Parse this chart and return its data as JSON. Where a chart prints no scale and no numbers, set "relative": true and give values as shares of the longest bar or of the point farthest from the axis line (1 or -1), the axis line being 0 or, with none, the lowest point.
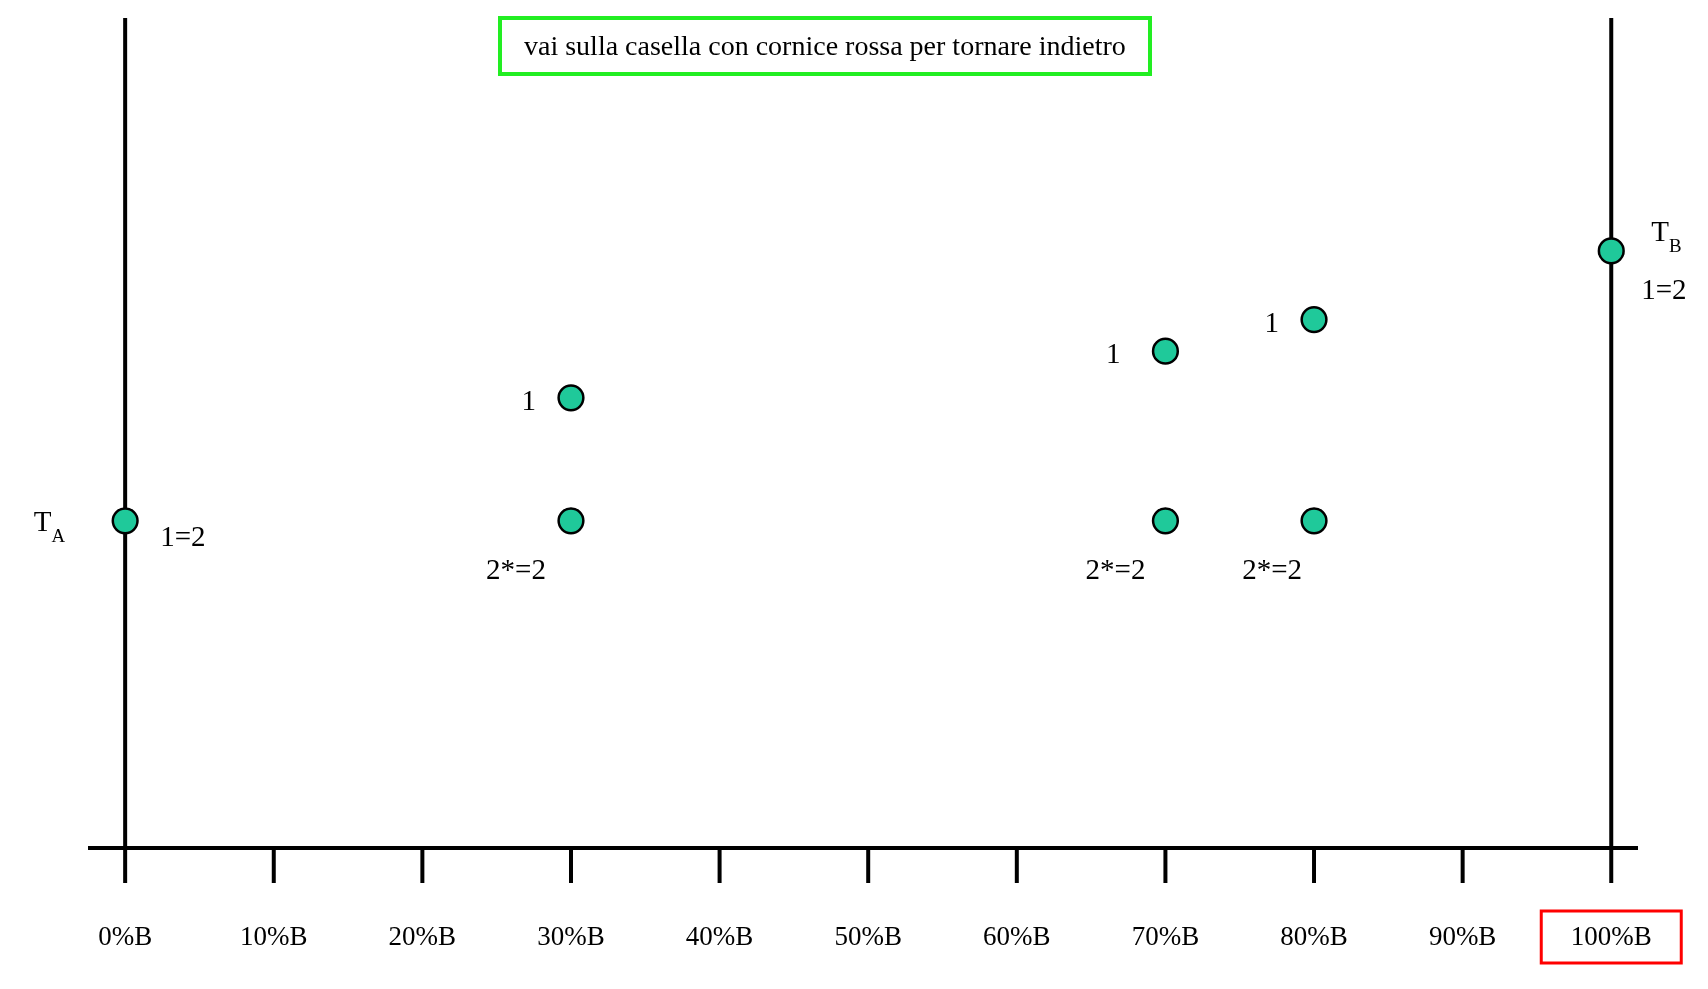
{
  "chart_data": {
    "type": "scatter",
    "relative": true,
    "title": "vai sulla casella con cornice rossa per tornare indietro",
    "x": [
      0,
      30,
      30,
      70,
      70,
      80,
      80,
      100
    ],
    "xlim": [
      -2.5,
      101.8
    ],
    "xticks": [
      {
        "value": 0,
        "label": "0%B"
      },
      {
        "value": 10,
        "label": "10%B"
      },
      {
        "value": 20,
        "label": "20%B"
      },
      {
        "value": 30,
        "label": "30%B"
      },
      {
        "value": 40,
        "label": "40%B"
      },
      {
        "value": 50,
        "label": "50%B"
      },
      {
        "value": 60,
        "label": "60%B"
      },
      {
        "value": 70,
        "label": "70%B"
      },
      {
        "value": 80,
        "label": "80%B"
      },
      {
        "value": 90,
        "label": "90%B"
      },
      {
        "value": 100,
        "label": "100%B"
      }
    ],
    "series": [
      {
        "color": "#1fc99a",
        "values": [
          0.548,
          0.754,
          0.548,
          0.832,
          0.548,
          0.885,
          0.548,
          1
        ]
      }
    ],
    "marker": "circle",
    "grid": false,
    "legend": false,
    "ref_lines": [
      {
        "axis": "x",
        "value": 0
      },
      {
        "axis": "x",
        "value": 100
      }
    ],
    "annotations": [
      {
        "text": "T$_{A}$",
        "x": 0,
        "y": 0.548
      },
      {
        "text": "1=2",
        "x": 0,
        "y": 0.548
      },
      {
        "text": "1",
        "x": 30,
        "y": 0.754
      },
      {
        "text": "2*=2",
        "x": 30,
        "y": 0.548
      },
      {
        "text": "1",
        "x": 70,
        "y": 0.832
      },
      {
        "text": "2*=2",
        "x": 70,
        "y": 0.548
      },
      {
        "text": "1",
        "x": 80,
        "y": 0.885
      },
      {
        "text": "2*=2",
        "x": 80,
        "y": 0.548
      },
      {
        "text": "T$_{B}$",
        "x": 100,
        "y": 1
      },
      {
        "text": "1=2",
        "x": 100,
        "y": 1
      }
    ]
  }
}
